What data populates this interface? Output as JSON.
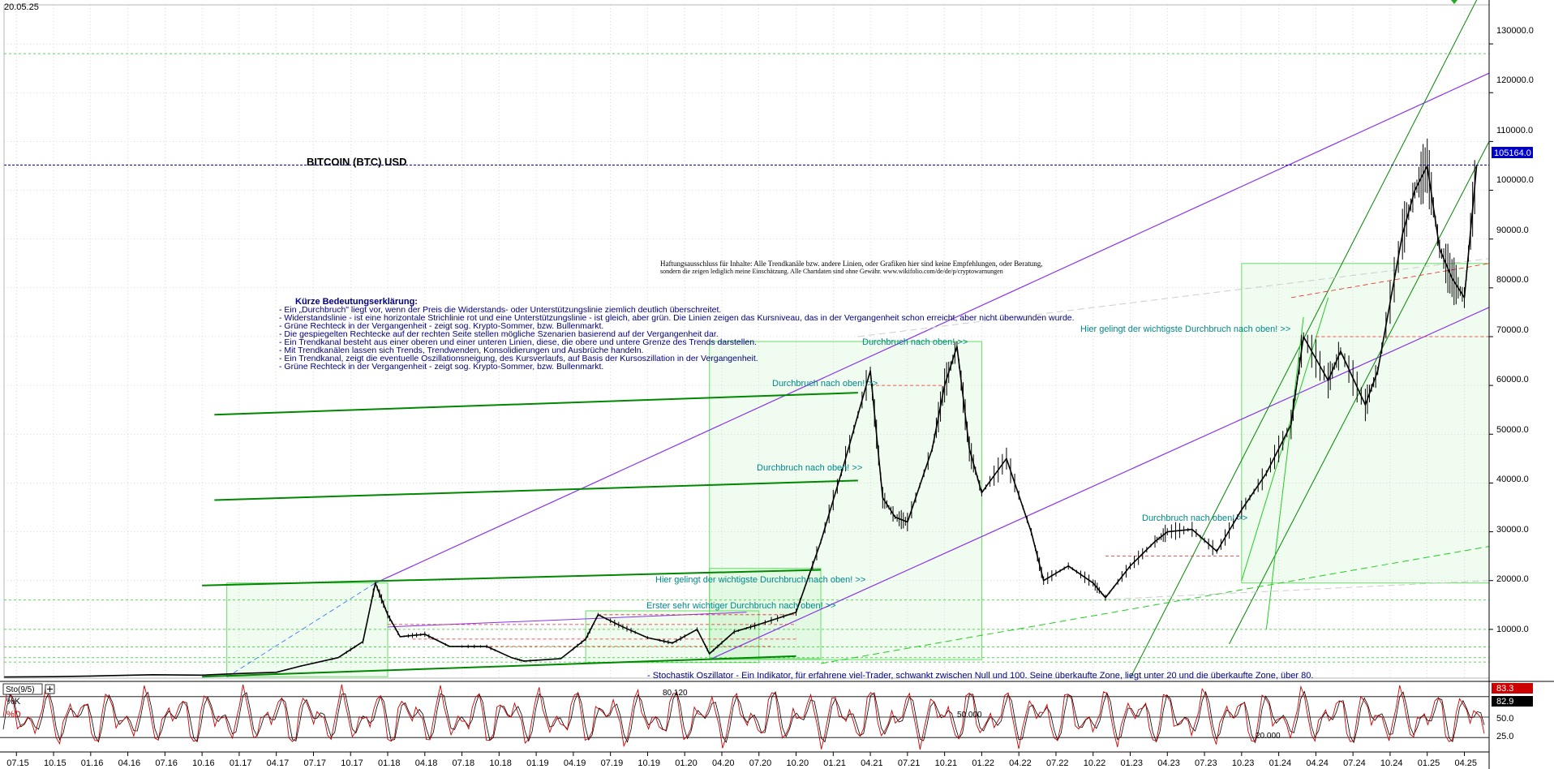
{
  "chart_data": {
    "type": "line",
    "date": "20.05.25",
    "title": "BITCOIN (BTC) USD",
    "price_axis": {
      "ylim": [
        0,
        138000
      ],
      "ticks": [
        "130000.0",
        "120000.0",
        "110000.0",
        "100000.0",
        "90000.0",
        "80000.0",
        "70000.0",
        "60000.0",
        "50000.0",
        "40000.0",
        "30000.0",
        "20000.0",
        "10000.0"
      ],
      "tick_values": [
        130000,
        120000,
        110000,
        100000,
        90000,
        80000,
        70000,
        60000,
        50000,
        40000,
        30000,
        20000,
        10000
      ]
    },
    "last_price": {
      "label": "105164.0",
      "value": 105164,
      "color": "#0000cc"
    },
    "x_ticks": [
      "07.15",
      "10.15",
      "01.16",
      "04.16",
      "07.16",
      "10.16",
      "01.17",
      "04.17",
      "07.17",
      "10.17",
      "01.18",
      "04.18",
      "07.18",
      "10.18",
      "01.19",
      "04.19",
      "07.19",
      "10.19",
      "01.20",
      "04.20",
      "07.20",
      "10.20",
      "01.21",
      "04.21",
      "07.21",
      "10.21",
      "01.22",
      "04.22",
      "07.22",
      "10.22",
      "01.23",
      "04.23",
      "07.23",
      "10.23",
      "01.24",
      "04.24",
      "07.24",
      "10.24",
      "01.25",
      "04.25"
    ],
    "x_range": [
      "2015-06",
      "2025-06"
    ],
    "series": [
      {
        "name": "",
        "color": "#000000",
        "points": [
          [
            "2015-06",
            230
          ],
          [
            "2015-10",
            300
          ],
          [
            "2016-01",
            430
          ],
          [
            "2016-06",
            700
          ],
          [
            "2016-10",
            620
          ],
          [
            "2017-01",
            950
          ],
          [
            "2017-04",
            1200
          ],
          [
            "2017-06",
            2500
          ],
          [
            "2017-09",
            4200
          ],
          [
            "2017-11",
            7500
          ],
          [
            "2017-12",
            19500
          ],
          [
            "2018-01",
            13000
          ],
          [
            "2018-02",
            8500
          ],
          [
            "2018-04",
            9000
          ],
          [
            "2018-06",
            6500
          ],
          [
            "2018-09",
            6500
          ],
          [
            "2018-11",
            4200
          ],
          [
            "2018-12",
            3500
          ],
          [
            "2019-03",
            4000
          ],
          [
            "2019-05",
            8000
          ],
          [
            "2019-06",
            13000
          ],
          [
            "2019-08",
            10500
          ],
          [
            "2019-10",
            8300
          ],
          [
            "2019-12",
            7200
          ],
          [
            "2020-02",
            10000
          ],
          [
            "2020-03",
            5000
          ],
          [
            "2020-05",
            9500
          ],
          [
            "2020-07",
            11000
          ],
          [
            "2020-10",
            13500
          ],
          [
            "2020-12",
            28000
          ],
          [
            "2021-02",
            45000
          ],
          [
            "2021-04",
            63000
          ],
          [
            "2021-05",
            37000
          ],
          [
            "2021-06",
            33000
          ],
          [
            "2021-07",
            32000
          ],
          [
            "2021-09",
            47000
          ],
          [
            "2021-10",
            60000
          ],
          [
            "2021-11",
            68000
          ],
          [
            "2021-12",
            47000
          ],
          [
            "2022-01",
            38000
          ],
          [
            "2022-03",
            45000
          ],
          [
            "2022-05",
            30000
          ],
          [
            "2022-06",
            20000
          ],
          [
            "2022-08",
            23000
          ],
          [
            "2022-10",
            19500
          ],
          [
            "2022-11",
            16500
          ],
          [
            "2023-01",
            23000
          ],
          [
            "2023-03",
            28000
          ],
          [
            "2023-04",
            30000
          ],
          [
            "2023-06",
            30500
          ],
          [
            "2023-08",
            26000
          ],
          [
            "2023-10",
            34500
          ],
          [
            "2023-12",
            42000
          ],
          [
            "2024-02",
            52000
          ],
          [
            "2024-03",
            70000
          ],
          [
            "2024-05",
            61000
          ],
          [
            "2024-06",
            67000
          ],
          [
            "2024-08",
            56000
          ],
          [
            "2024-09",
            63000
          ],
          [
            "2024-11",
            91000
          ],
          [
            "2024-12",
            100000
          ],
          [
            "2025-01",
            105000
          ],
          [
            "2025-02",
            88000
          ],
          [
            "2025-03",
            82000
          ],
          [
            "2025-04",
            78000
          ],
          [
            "2025-05",
            105164
          ]
        ]
      }
    ],
    "annotations": {
      "breakouts": [
        {
          "text": "Durchbruch nach oben! >>",
          "color": "#008888"
        },
        {
          "text": "Durchbruch nach oben! >>",
          "color": "#008888"
        },
        {
          "text": "Durchbruch nach oben! >>",
          "color": "#008888"
        },
        {
          "text": "Durchbruch nach oben! >>",
          "color": "#008888"
        },
        {
          "text": "Hier gelingt der wichtigste Durchbruch nach oben! >>",
          "color": "#008888"
        },
        {
          "text": "Hier gelingt der wichtigste Durchbruch nach oben! >>",
          "color": "#008888"
        },
        {
          "text": "Erster sehr wichtiger Durchbruch nach oben! >>",
          "color": "#008888"
        }
      ],
      "disclaimer_line1": "Haftungsausschluss für Inhalte: Alle Trendkanäle bzw. andere Linien, oder Grafiken hier sind keine Empfehlungen, oder Beratung,",
      "disclaimer_line2": "sondern die zeigen lediglich meine  Einschätzung. Alle Chartdaten sind ohne Gewähr.  www.wikifolio.com/de/de/p/cryptowarnungen",
      "legend_title": "Kürze Bedeutungserklärung:",
      "legend_lines": [
        "- Ein „Durchbruch\" liegt vor, wenn der Preis die Widerstands- oder Unterstützungslinie ziemlich deutlich überschreitet.",
        "- Widerstandslinie - ist eine horizontale Strichlinie rot und eine Unterstützungslinie - ist gleich, aber grün. Die Linien zeigen das Kursniveau, das in der Vergangenheit schon erreicht, aber nicht überwunden wurde.",
        "- Grüne Rechteck in der Vergangenheit - zeigt sog. Krypto-Sommer, bzw. Bullenmarkt.",
        "- Die gespiegelten Rechtecke auf der rechten Seite stellen mögliche Szenarien basierend auf der Vergangenheit dar.",
        "- Ein Trendkanal besteht aus einer oberen und einer unteren Linien, diese, die obere und untere Grenze des Trends darstellen.",
        "- Mit Trendkanälen lassen sich Trends, Trendwenden, Konsolidierungen und Ausbrüche handeln.",
        "- Ein Trendkanal, zeigt die eventuelle Oszillationsneigung, des Kursverlaufs, auf Basis der Kursoszillation in der Vergangenheit.",
        "- Grüne Rechteck in der Vergangenheit - zeigt sog. Krypto-Sommer, bzw. Bullenmarkt."
      ],
      "stochastic_note": "- Stochastik Oszillator - Ein Indikator, für erfahrene viel-Trader, schwankt zwischen Null und 100. Seine überkaufte Zone, liegt unter 20 und die überkaufte Zone, über 80.",
      "osc_labels": [
        "80.120",
        "50.000",
        "20.000"
      ]
    },
    "oscillator": {
      "name": "Sto(9/5)",
      "k_label": "%K",
      "d_label": "%D",
      "k_value": "83.3",
      "d_value": "82.9",
      "k_color": "#cc0000",
      "ticks": [
        "50.0",
        "25.0"
      ],
      "range": [
        0,
        100
      ]
    },
    "colors": {
      "price": "#000000",
      "trend_green": "#008800",
      "trend_purple": "#8833ee",
      "resistance": "#ee2222",
      "support": "#22cc22",
      "bull_box": "#66dd66"
    }
  }
}
